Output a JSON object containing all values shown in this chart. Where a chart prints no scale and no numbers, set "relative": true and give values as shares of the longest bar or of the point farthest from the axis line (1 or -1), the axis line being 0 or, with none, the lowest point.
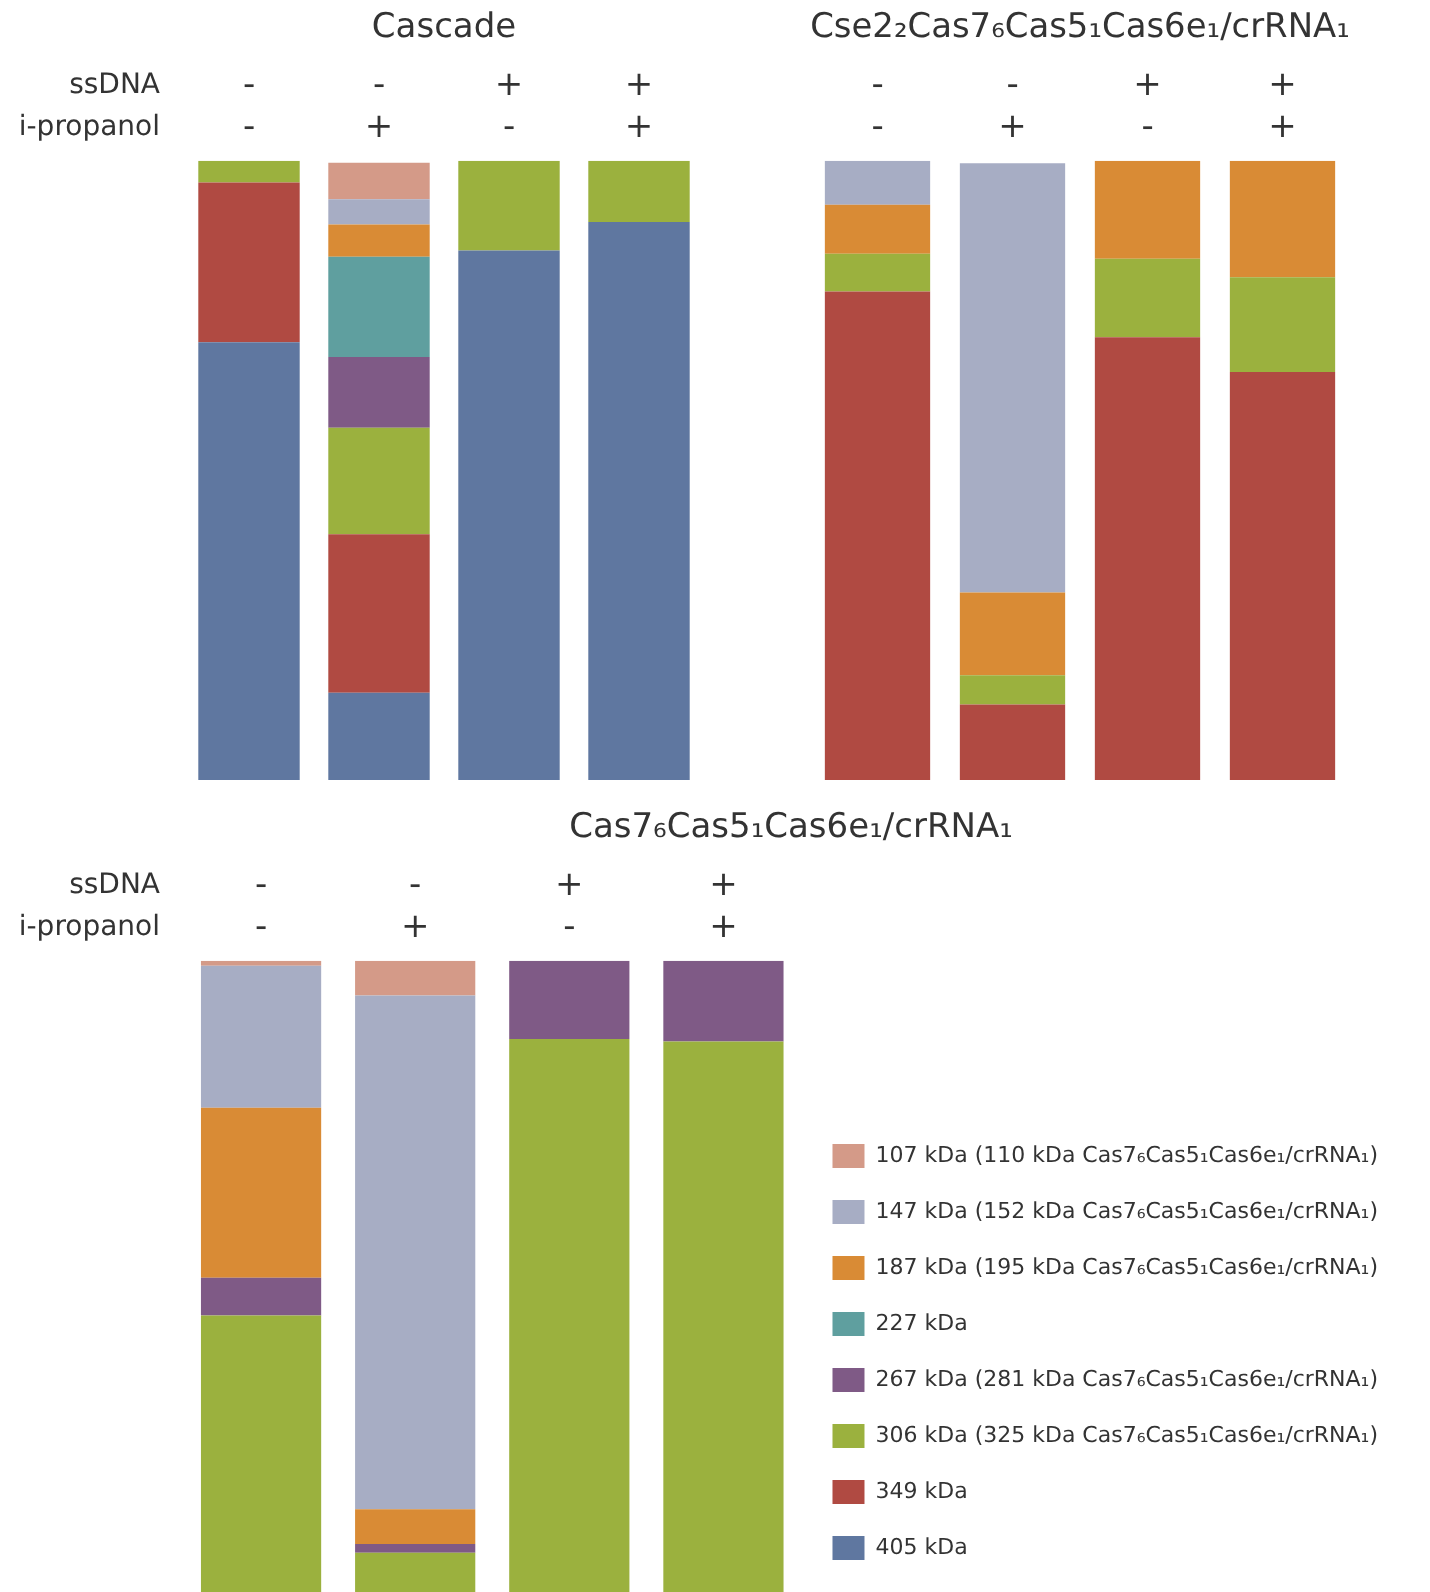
{
  "chart_data": [
    {
      "type": "bar",
      "title": "Cascade",
      "categories": [
        "-\n-",
        "-\n+",
        "+\n-",
        "+\n+"
      ],
      "stacked": true,
      "relative": true,
      "annotations": [
        "ssDNA",
        "i-propanol"
      ],
      "series": [
        {
          "color": "#5f77a0",
          "values": [
            0.707,
            0.141,
            0.855,
            0.901
          ]
        },
        {
          "color": "#b04a42",
          "values": [
            0.258,
            0.256,
            null,
            null
          ]
        },
        {
          "color": "#9bb13e",
          "values": [
            0.035,
            0.172,
            0.145,
            0.099
          ]
        },
        {
          "color": "#7f5a86",
          "values": [
            null,
            0.114,
            null,
            null
          ]
        },
        {
          "color": "#5f9f9f",
          "values": [
            null,
            0.162,
            null,
            null
          ]
        },
        {
          "color": "#d98b35",
          "values": [
            null,
            0.052,
            null,
            null
          ]
        },
        {
          "color": "#a7adc4",
          "values": [
            null,
            0.041,
            null,
            null
          ]
        },
        {
          "color": "#d49a88",
          "values": [
            null,
            0.059,
            null,
            null
          ]
        }
      ]
    },
    {
      "type": "bar",
      "title": "Cse2₂Cas7₆Cas5₁Cas6e₁/crRNA₁",
      "categories": [
        "-\n-",
        "-\n+",
        "+\n-",
        "+\n+"
      ],
      "stacked": true,
      "relative": true,
      "series": [
        {
          "color": "#b04a42",
          "values": [
            0.789,
            0.122,
            0.715,
            0.659
          ]
        },
        {
          "color": "#9bb13e",
          "values": [
            0.061,
            0.047,
            0.127,
            0.153
          ]
        },
        {
          "color": "#d98b35",
          "values": [
            0.079,
            0.134,
            0.158,
            0.188
          ]
        },
        {
          "color": "#a7adc4",
          "values": [
            0.071,
            0.693,
            null,
            null
          ]
        }
      ]
    },
    {
      "type": "bar",
      "title": "Cas7₆Cas5₁Cas6e₁/crRNA₁",
      "categories": [
        "-\n-",
        "-\n+",
        "+\n-",
        "+\n+"
      ],
      "stacked": true,
      "relative": true,
      "annotations": [
        "ssDNA",
        "i-propanol"
      ],
      "legend": "right",
      "series": [
        {
          "name": "405 kDa",
          "color": "#5f77a0",
          "values": [
            null,
            null,
            null,
            null
          ]
        },
        {
          "name": "349 kDa",
          "color": "#b04a42",
          "values": [
            null,
            null,
            null,
            null
          ]
        },
        {
          "name": "306 kDa (325 kDa Cas7₆Cas5₁Cas6e₁/crRNA₁)",
          "color": "#9bb13e",
          "values": [
            0.438,
            0.062,
            0.876,
            0.872
          ]
        },
        {
          "name": "267 kDa (281 kDa Cas7₆Cas5₁Cas6e₁/crRNA₁)",
          "color": "#7f5a86",
          "values": [
            0.06,
            0.014,
            0.124,
            0.128
          ]
        },
        {
          "name": "227 kDa",
          "color": "#5f9f9f",
          "values": [
            null,
            null,
            null,
            null
          ]
        },
        {
          "name": "187 kDa (195 kDa Cas7₆Cas5₁Cas6e₁/crRNA₁)",
          "color": "#d98b35",
          "values": [
            0.269,
            0.055,
            null,
            null
          ]
        },
        {
          "name": "147 kDa (152 kDa Cas7₆Cas5₁Cas6e₁/crRNA₁)",
          "color": "#a7adc4",
          "values": [
            0.225,
            0.814,
            null,
            null
          ]
        },
        {
          "name": "107 kDa (110 kDa Cas7₆Cas5₁Cas6e₁/crRNA₁)",
          "color": "#d49a88",
          "values": [
            0.008,
            0.055,
            null,
            null
          ]
        }
      ]
    }
  ]
}
